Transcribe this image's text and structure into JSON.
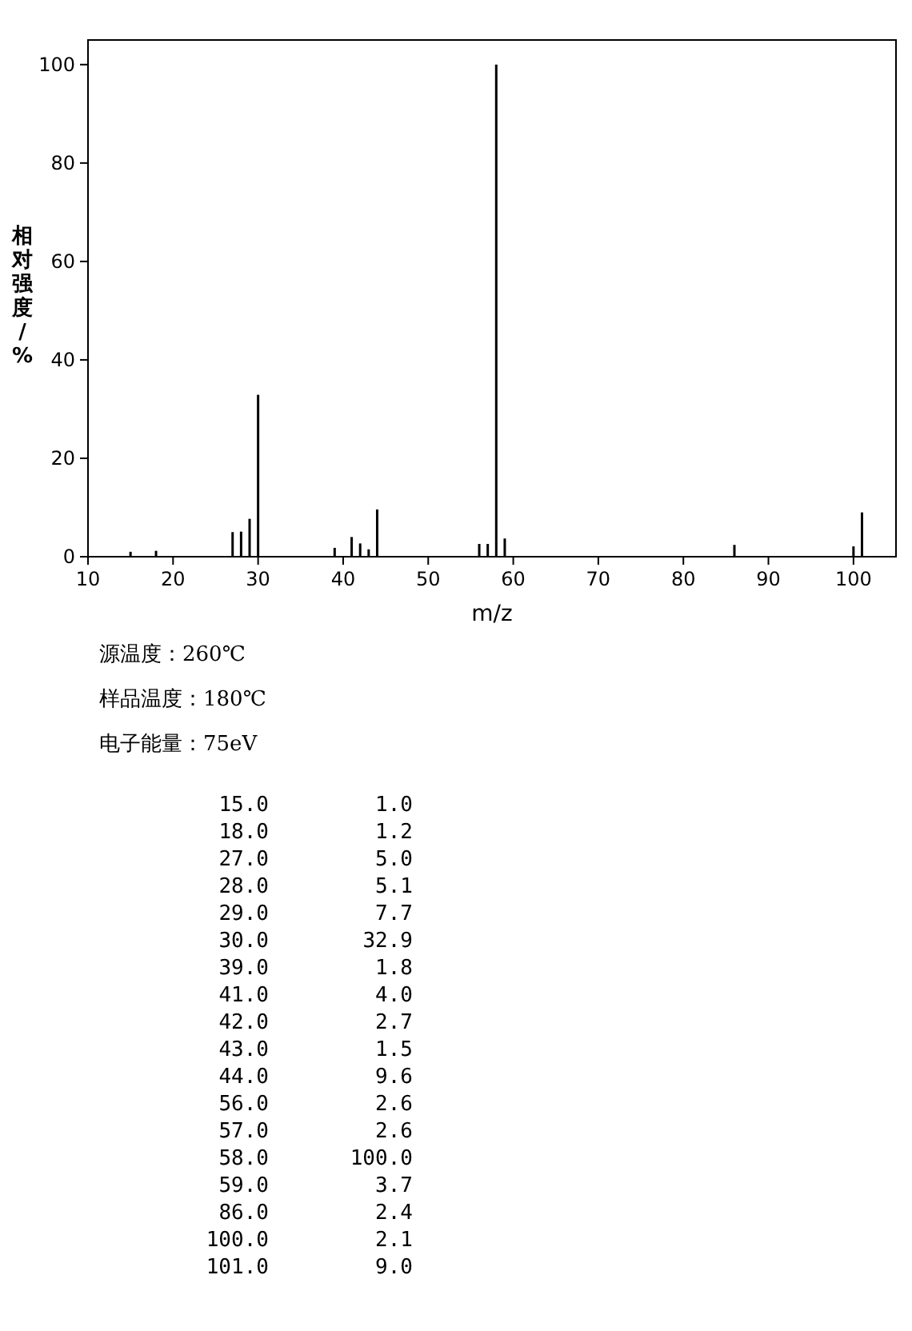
{
  "chart_data": [
    {
      "type": "bar",
      "xlabel": "m/z",
      "ylabel": "相对强度/%",
      "annotations": [
        "源温度：260℃",
        "样品温度：180℃",
        "电子能量：75eV"
      ],
      "x": [
        15,
        18,
        27,
        28,
        29,
        30,
        39,
        41,
        42,
        43,
        44,
        56,
        57,
        58,
        59,
        86,
        100,
        101
      ],
      "values": [
        1.0,
        1.2,
        5.0,
        5.1,
        7.7,
        32.9,
        1.8,
        4.0,
        2.7,
        1.5,
        9.6,
        2.6,
        2.6,
        100.0,
        3.7,
        2.4,
        2.1,
        9.0
      ],
      "color": "#000000",
      "xlim": [
        10,
        105
      ],
      "ylim": [
        0,
        105
      ],
      "xticks": [
        10,
        20,
        30,
        40,
        50,
        60,
        70,
        80,
        90,
        100
      ],
      "yticks": [
        0,
        20,
        40,
        60,
        80,
        100
      ]
    },
    {
      "type": "other",
      "annotations": [
        "15.0",
        "1.0",
        "18.0",
        "1.2",
        "27.0",
        "5.0",
        "28.0",
        "5.1",
        "29.0",
        "7.7",
        "30.0",
        "32.9",
        "39.0",
        "1.8",
        "41.0",
        "4.0",
        "42.0",
        "2.7",
        "43.0",
        "1.5",
        "44.0",
        "9.6",
        "56.0",
        "2.6",
        "57.0",
        "2.6",
        "58.0",
        "100.0",
        "59.0",
        "3.7",
        "86.0",
        "2.4",
        "100.0",
        "2.1",
        "101.0",
        "9.0"
      ]
    }
  ]
}
